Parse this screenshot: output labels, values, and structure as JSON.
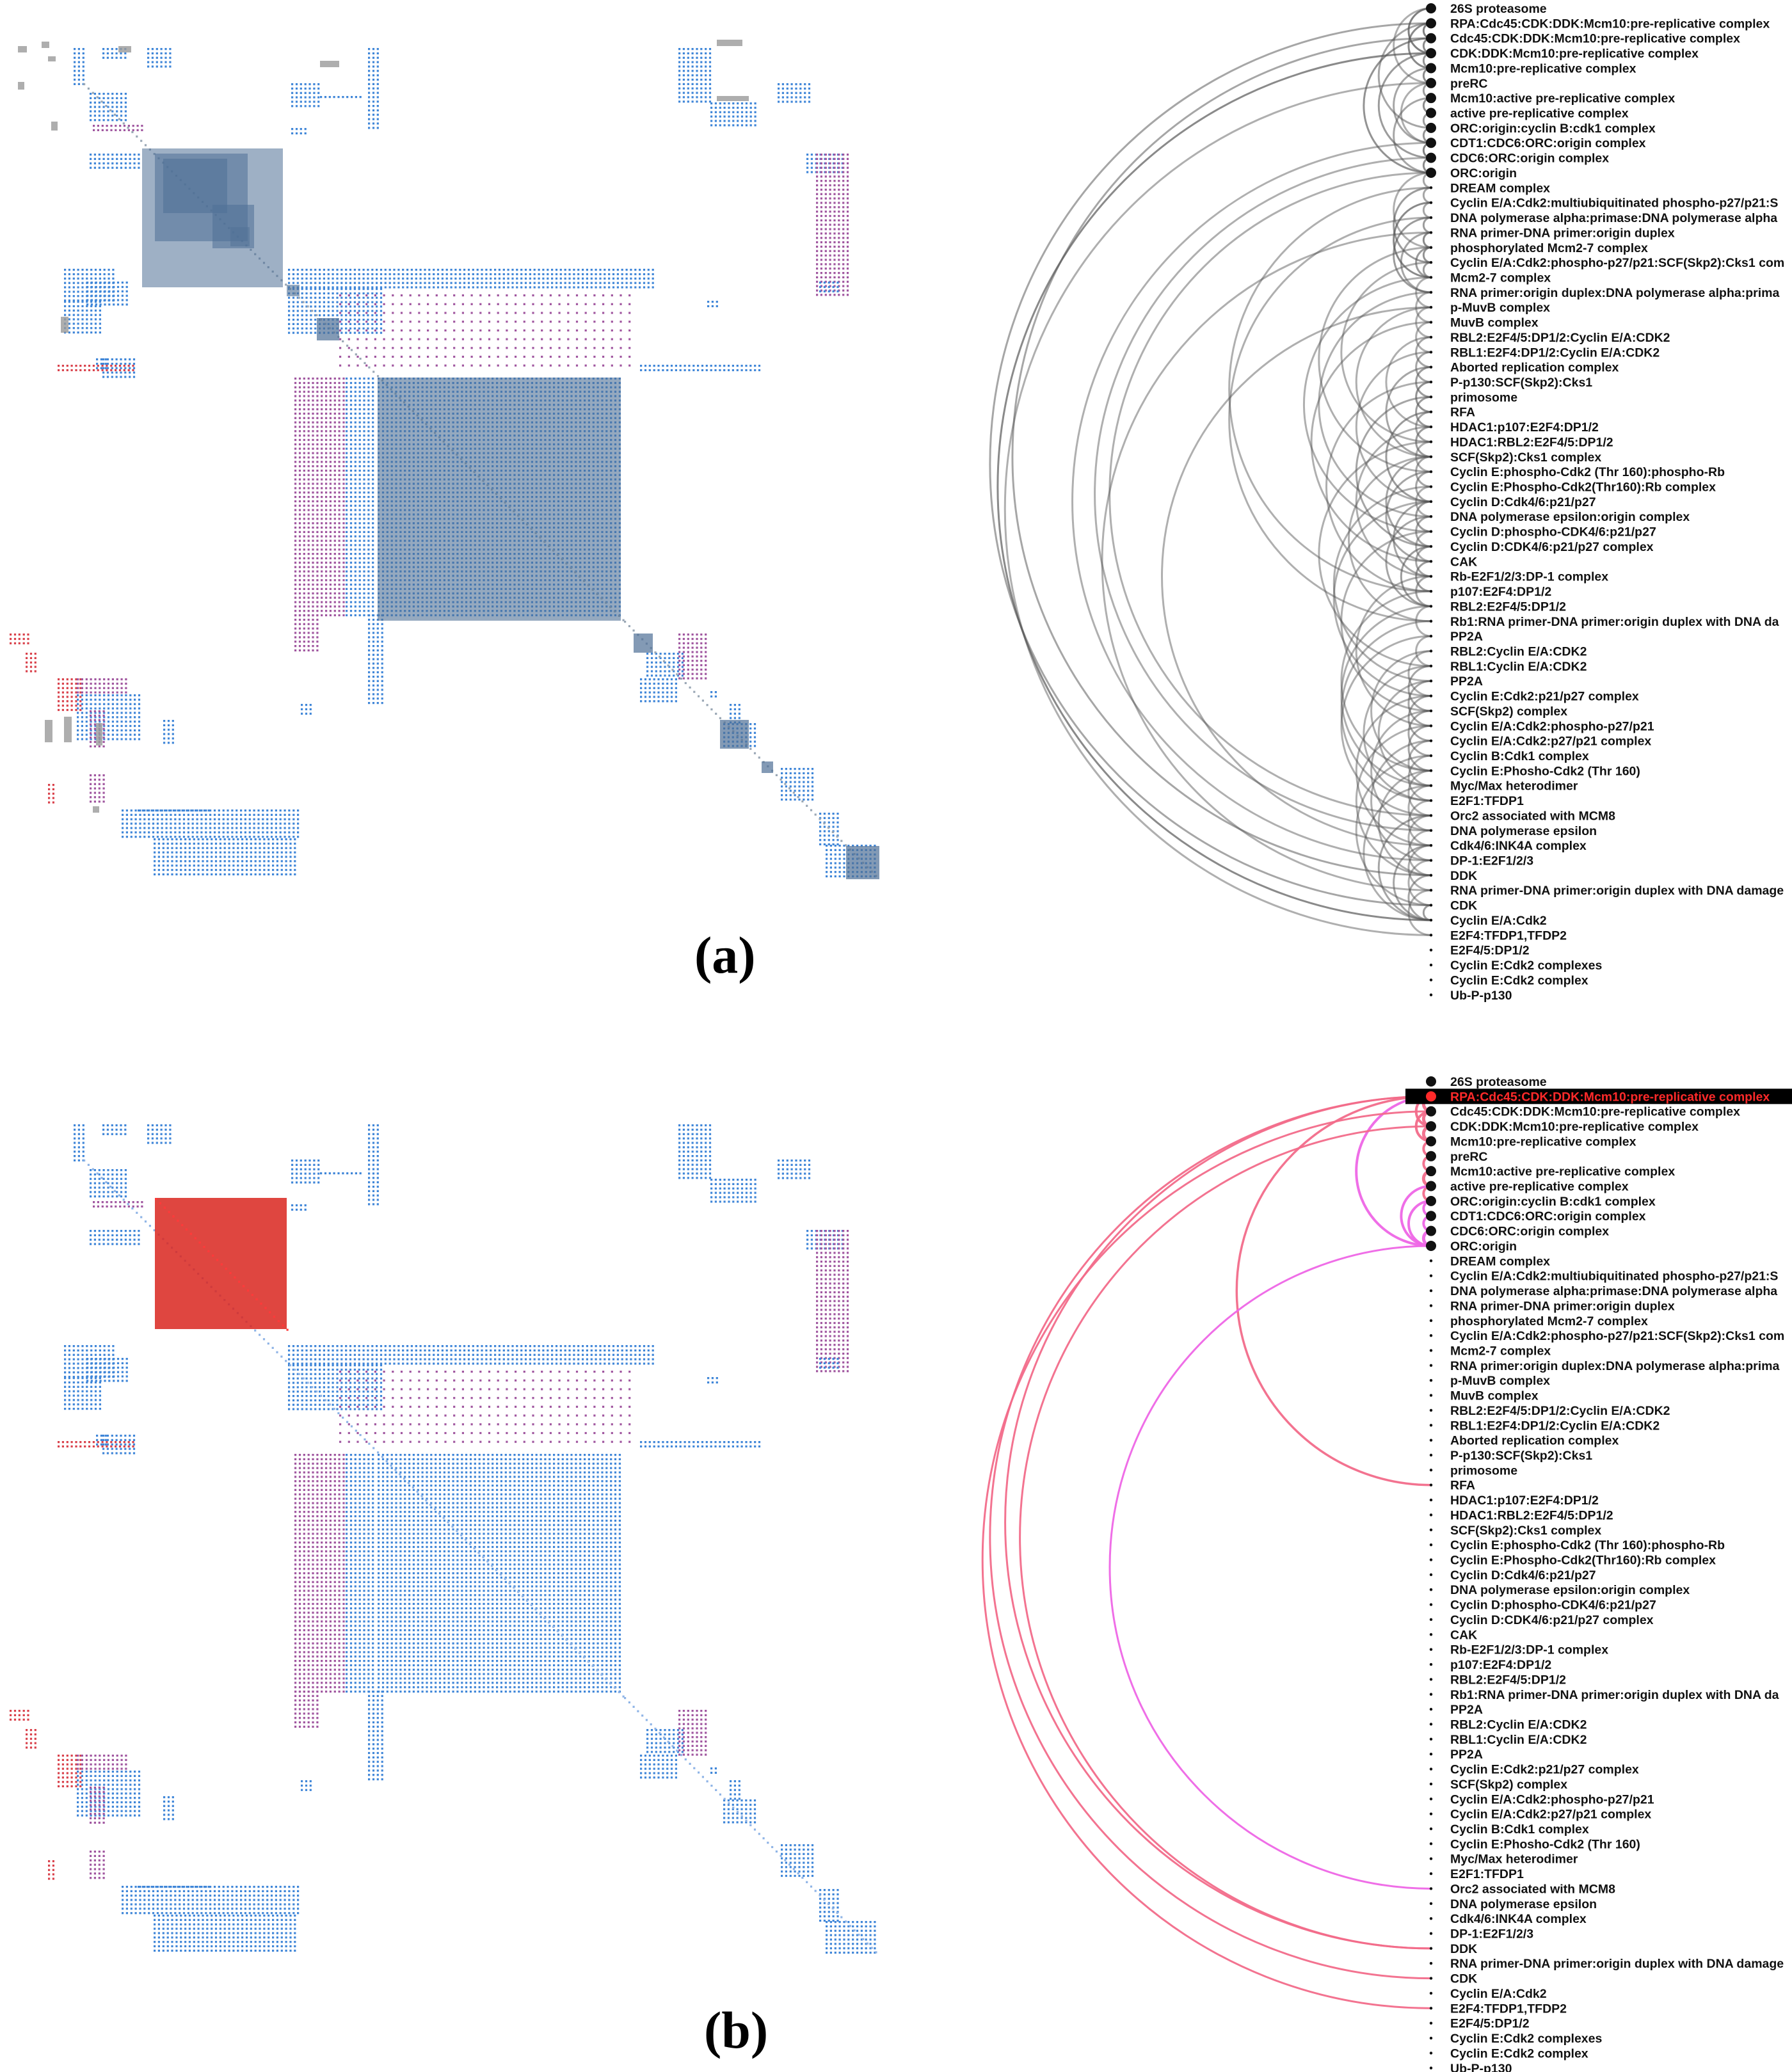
{
  "panels": [
    {
      "caption": "(a)",
      "highlighted": null
    },
    {
      "caption": "(b)",
      "highlighted": "RPA:Cdc45:CDK:DDK:Mcm10:pre-replicative complex"
    }
  ],
  "nodes": [
    "26S proteasome",
    "RPA:Cdc45:CDK:DDK:Mcm10:pre-replicative complex",
    "Cdc45:CDK:DDK:Mcm10:pre-replicative complex",
    "CDK:DDK:Mcm10:pre-replicative complex",
    "Mcm10:pre-replicative complex",
    "preRC",
    "Mcm10:active pre-replicative complex",
    "active pre-replicative complex",
    "ORC:origin:cyclin B:cdk1 complex",
    "CDT1:CDC6:ORC:origin complex",
    "CDC6:ORC:origin complex",
    "ORC:origin",
    "DREAM complex",
    "Cyclin E/A:Cdk2:multiubiquitinated phospho-p27/p21:S",
    "DNA polymerase alpha:primase:DNA polymerase alpha",
    "RNA primer-DNA primer:origin duplex",
    "phosphorylated Mcm2-7 complex",
    "Cyclin E/A:Cdk2:phospho-p27/p21:SCF(Skp2):Cks1 com",
    "Mcm2-7 complex",
    "RNA primer:origin duplex:DNA polymerase alpha:prima",
    "p-MuvB complex",
    "MuvB complex",
    "RBL2:E2F4/5:DP1/2:Cyclin E/A:CDK2",
    "RBL1:E2F4:DP1/2:Cyclin E/A:CDK2",
    "Aborted replication complex",
    "P-p130:SCF(Skp2):Cks1",
    "primosome",
    "RFA",
    "HDAC1:p107:E2F4:DP1/2",
    "HDAC1:RBL2:E2F4/5:DP1/2",
    "SCF(Skp2):Cks1 complex",
    "Cyclin E:phospho-Cdk2 (Thr 160):phospho-Rb",
    "Cyclin E:Phospho-Cdk2(Thr160):Rb complex",
    "Cyclin D:Cdk4/6:p21/p27",
    "DNA polymerase epsilon:origin complex",
    "Cyclin D:phospho-CDK4/6:p21/p27",
    "Cyclin D:CDK4/6:p21/p27 complex",
    "CAK",
    "Rb-E2F1/2/3:DP-1 complex",
    "p107:E2F4:DP1/2",
    "RBL2:E2F4/5:DP1/2",
    "Rb1:RNA primer-DNA primer:origin duplex with DNA da",
    "PP2A",
    "RBL2:Cyclin E/A:CDK2",
    "RBL1:Cyclin E/A:CDK2",
    "PP2A",
    "Cyclin E:Cdk2:p21/p27 complex",
    "SCF(Skp2) complex",
    "Cyclin E/A:Cdk2:phospho-p27/p21",
    "Cyclin E/A:Cdk2:p27/p21 complex",
    "Cyclin B:Cdk1 complex",
    "Cyclin E:Phosho-Cdk2 (Thr 160)",
    "Myc/Max heterodimer",
    "E2F1:TFDP1",
    "Orc2 associated with MCM8",
    "DNA polymerase epsilon",
    "Cdk4/6:INK4A complex",
    "DP-1:E2F1/2/3",
    "DDK",
    "RNA primer-DNA primer:origin duplex with DNA damage",
    "CDK",
    "Cyclin E/A:Cdk2",
    "E2F4:TFDP1,TFDP2",
    "E2F4/5:DP1/2",
    "Cyclin E:Cdk2 complexes",
    "Cyclin E:Cdk2 complex",
    "Ub-P-p130"
  ],
  "colors": {
    "matrix_dot_blue": "#3f86d8",
    "matrix_dot_purple": "#a0569f",
    "matrix_dot_red": "#d9414b",
    "block_fill_a": "#4f6f95",
    "block_fill_b": "#d9261e",
    "arc_gray": "#8a8a8a",
    "arc_pink": "#f26b8a",
    "arc_magenta": "#ee66e6",
    "highlight_bar": "#000000",
    "highlight_text": "#ff2a2a"
  }
}
